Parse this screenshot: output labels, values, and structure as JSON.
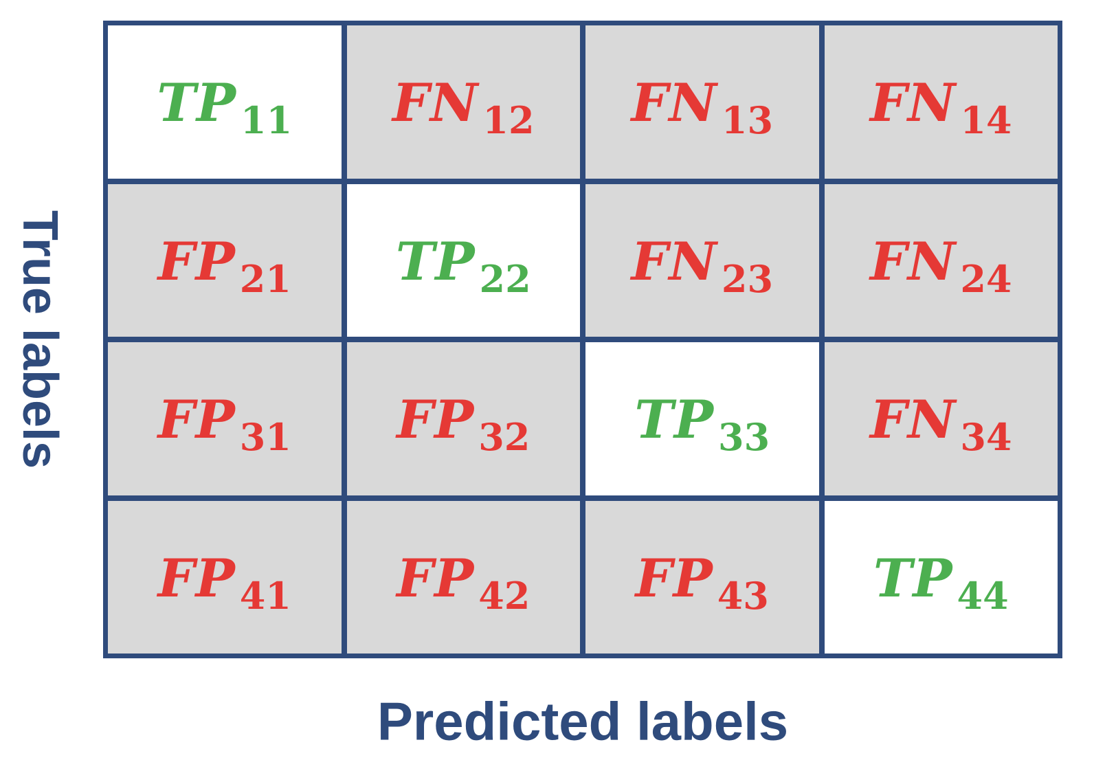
{
  "axes": {
    "y_label": "True labels",
    "x_label": "Predicted labels"
  },
  "colors": {
    "frame": "#2f4b7c",
    "true_positive": "#4caf50",
    "error": "#e53935",
    "off_diagonal_fill": "#d9d9d9",
    "diagonal_fill": "#ffffff"
  },
  "matrix": {
    "rows": [
      [
        {
          "term": "TP",
          "sub": "11"
        },
        {
          "term": "FN",
          "sub": "12"
        },
        {
          "term": "FN",
          "sub": "13"
        },
        {
          "term": "FN",
          "sub": "14"
        }
      ],
      [
        {
          "term": "FP",
          "sub": "21"
        },
        {
          "term": "TP",
          "sub": "22"
        },
        {
          "term": "FN",
          "sub": "23"
        },
        {
          "term": "FN",
          "sub": "24"
        }
      ],
      [
        {
          "term": "FP",
          "sub": "31"
        },
        {
          "term": "FP",
          "sub": "32"
        },
        {
          "term": "TP",
          "sub": "33"
        },
        {
          "term": "FN",
          "sub": "34"
        }
      ],
      [
        {
          "term": "FP",
          "sub": "41"
        },
        {
          "term": "FP",
          "sub": "42"
        },
        {
          "term": "FP",
          "sub": "43"
        },
        {
          "term": "TP",
          "sub": "44"
        }
      ]
    ]
  }
}
